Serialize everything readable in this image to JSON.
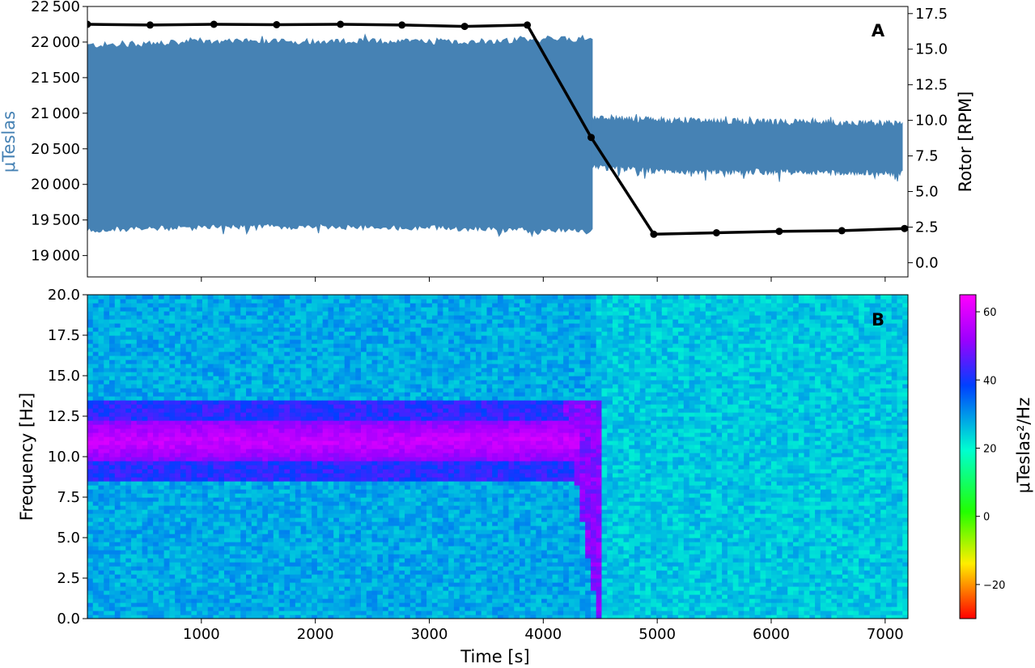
{
  "chart_data": [
    {
      "panel_label": "A",
      "type": "line",
      "colors": {
        "signal": "#4682b4",
        "rotor": "#000000"
      },
      "xlim": [
        0,
        7200
      ],
      "ylabel": "μTeslas",
      "y2label": "Rotor [RPM]",
      "ylim": [
        18700,
        22500
      ],
      "y_ticks": [
        19000,
        19500,
        20000,
        20500,
        21000,
        21500,
        22000,
        22500
      ],
      "y_tick_labels": [
        "19 000",
        "19 500",
        "20 000",
        "20 500",
        "21 000",
        "21 500",
        "22 000",
        "22 500"
      ],
      "y2lim": [
        -1.0,
        18.0
      ],
      "y2_ticks": [
        0.0,
        2.5,
        5.0,
        7.5,
        10.0,
        12.5,
        15.0,
        17.5
      ],
      "y2_tick_labels": [
        "0.0",
        "2.5",
        "5.0",
        "7.5",
        "10.0",
        "12.5",
        "15.0",
        "17.5"
      ],
      "signal_envelope": {
        "segments": [
          {
            "t_start": 0,
            "t_end": 4430,
            "upper": [
              21950,
              22000,
              22010,
              22000,
              22050
            ],
            "lower": [
              19380,
              19420,
              19430,
              19400,
              19360
            ]
          },
          {
            "t_start": 4430,
            "t_end": 7150,
            "upper": [
              20930,
              20900,
              20880,
              20870,
              20850
            ],
            "lower": [
              20270,
              20200,
              20200,
              20190,
              20180
            ]
          }
        ]
      },
      "series": [
        {
          "axis": "right",
          "x": [
            0,
            550,
            1110,
            1660,
            2220,
            2760,
            3310,
            3860,
            4420,
            4970,
            5520,
            6070,
            6620,
            7170
          ],
          "values": [
            16.75,
            16.7,
            16.75,
            16.72,
            16.75,
            16.7,
            16.6,
            16.7,
            8.8,
            2.0,
            2.1,
            2.2,
            2.25,
            2.4
          ]
        }
      ]
    },
    {
      "panel_label": "B",
      "type": "heatmap",
      "xlabel": "Time [s]",
      "ylabel": "Frequency [Hz]",
      "xlim": [
        0,
        7200
      ],
      "x_ticks": [
        1000,
        2000,
        3000,
        4000,
        5000,
        6000,
        7000
      ],
      "x_tick_labels": [
        "1000",
        "2000",
        "3000",
        "4000",
        "5000",
        "6000",
        "7000"
      ],
      "ylim": [
        0,
        20
      ],
      "y_ticks": [
        0,
        2.5,
        5,
        7.5,
        10,
        12.5,
        15,
        17.5,
        20
      ],
      "y_tick_labels": [
        "0.0",
        "2.5",
        "5.0",
        "7.5",
        "10.0",
        "12.5",
        "15.0",
        "17.5",
        "20.0"
      ],
      "colorbar": {
        "label": "μTeslas²/Hz",
        "vmin": -30,
        "vmax": 65,
        "ticks": [
          -20,
          0,
          20,
          40,
          60
        ],
        "tick_labels": [
          "−20",
          "0",
          "20",
          "40",
          "60"
        ],
        "colormap": "gist_rainbow"
      },
      "background_level": 28,
      "features": [
        {
          "name": "peak-band",
          "t_start": 0,
          "t_end": 4300,
          "f_center": 11.0,
          "f_width": 1.2,
          "level": 58
        },
        {
          "name": "halo-band",
          "t_start": 0,
          "t_end": 4300,
          "f_low": 8.5,
          "f_high": 13.5,
          "level": 42
        },
        {
          "name": "transient-tail",
          "t_start": 4200,
          "t_end": 4500,
          "f_low": 0.0,
          "f_high": 13.5,
          "level": 50
        }
      ]
    }
  ]
}
